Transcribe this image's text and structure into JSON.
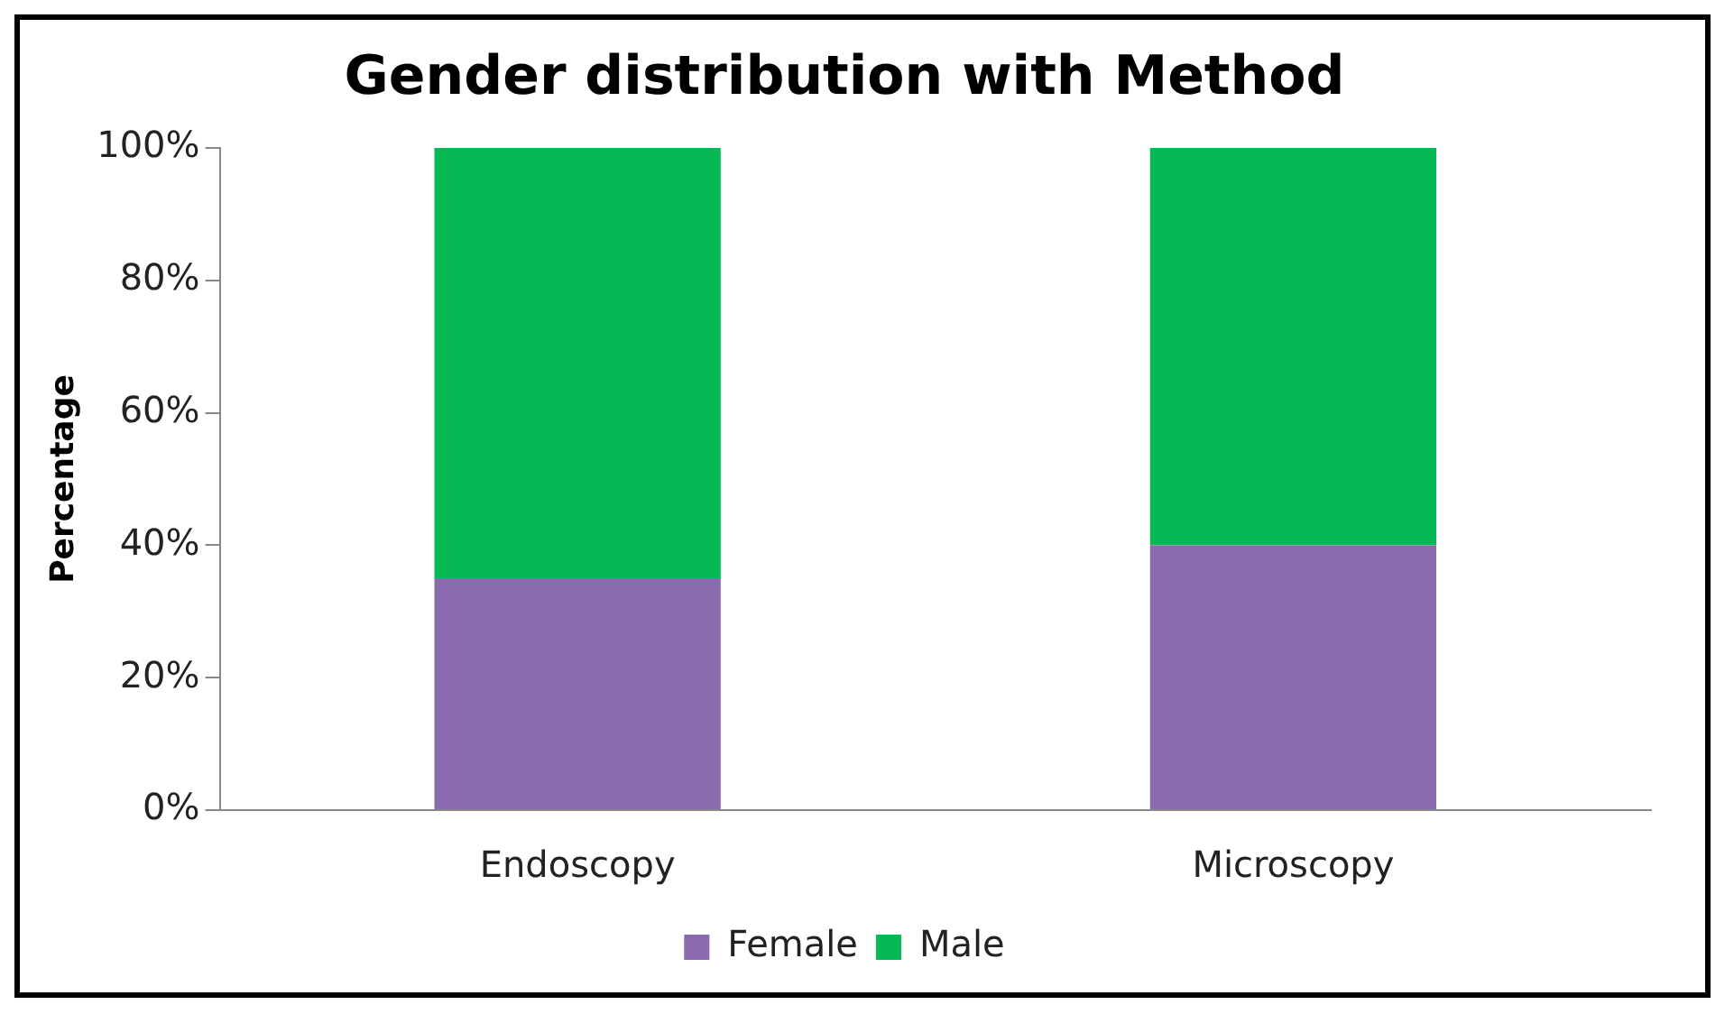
{
  "chart_data": {
    "type": "bar",
    "title": "Gender distribution with Method",
    "ylabel": "Percentage",
    "categories": [
      "Endoscopy",
      "Microscopy"
    ],
    "stacked": true,
    "series": [
      {
        "name": "Female",
        "color": "#8a6bad",
        "values": [
          35,
          40
        ]
      },
      {
        "name": "Male",
        "color": "#07b955",
        "values": [
          65,
          60
        ]
      }
    ],
    "ylim": [
      0,
      100
    ],
    "yticks": [
      {
        "value": 0,
        "label": "0%"
      },
      {
        "value": 20,
        "label": "20%"
      },
      {
        "value": 40,
        "label": "40%"
      },
      {
        "value": 60,
        "label": "60%"
      },
      {
        "value": 80,
        "label": "80%"
      },
      {
        "value": 100,
        "label": "100%"
      }
    ],
    "grid": false,
    "legend": "bottom"
  }
}
